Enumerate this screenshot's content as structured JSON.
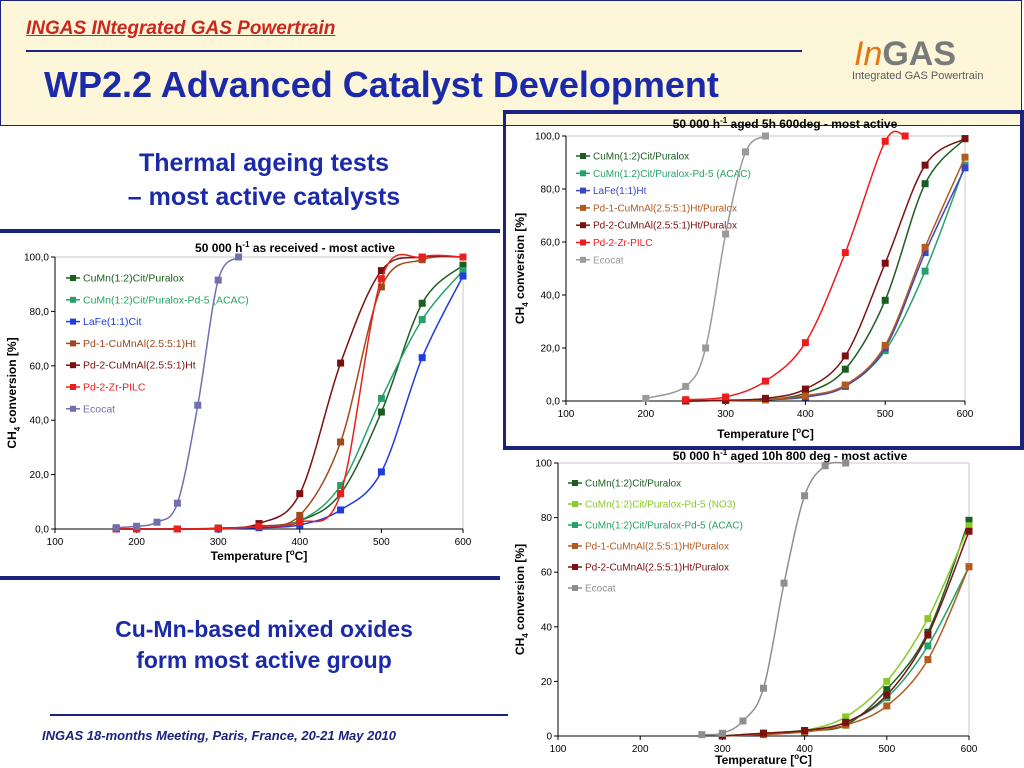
{
  "header": {
    "project_title": "INGAS INtegrated GAS Powertrain",
    "page_title": "WP2.2 Advanced Catalyst Development",
    "logo_in": "In",
    "logo_gas": "GAS",
    "logo_subtitle": "Integrated GAS Powertrain"
  },
  "section_title": [
    "Thermal ageing tests",
    "– most active catalysts"
  ],
  "conclusion": [
    "Cu-Mn-based mixed oxides",
    "form most active group"
  ],
  "footer": "INGAS 18-months Meeting, Paris, France, 20-21 May 2010",
  "chart_data": [
    {
      "type": "line",
      "title_main": "50 000 h",
      "title_sup": "-1",
      "title_rest": " as received - most active",
      "xlabel": "Temperature [",
      "xlabel_unit": "o",
      "xlabel_end": "C]",
      "ylabel": "CH",
      "ylabel_sub": "4",
      "ylabel_end": " conversion [%]",
      "xlim": [
        100,
        600
      ],
      "ylim": [
        0,
        100
      ],
      "xticks": [
        100,
        200,
        300,
        400,
        500,
        600
      ],
      "yticks": [
        "0,0",
        "20,0",
        "40,0",
        "60,0",
        "80,0",
        "100,0"
      ],
      "legend_position": "top-left",
      "series": [
        {
          "name": "CuMn(1:2)Cit/Puralox",
          "color": "#1b5e20",
          "x": [
            175,
            200,
            250,
            300,
            350,
            400,
            450,
            500,
            550,
            600
          ],
          "y": [
            0,
            0,
            0,
            0.2,
            1,
            3,
            13,
            43,
            83,
            97
          ]
        },
        {
          "name": "CuMn(1:2)Cit/Puralox-Pd-5 (ACAC)",
          "color": "#26a269",
          "x": [
            175,
            200,
            250,
            300,
            350,
            400,
            450,
            500,
            550,
            600
          ],
          "y": [
            0,
            0,
            0,
            0.2,
            1,
            3,
            16,
            48,
            77,
            95
          ]
        },
        {
          "name": "LaFe(1:1)Cit",
          "color": "#1f3ce0",
          "x": [
            175,
            200,
            250,
            300,
            350,
            400,
            450,
            500,
            550,
            600
          ],
          "y": [
            0,
            0,
            0,
            0,
            0.5,
            1.5,
            7,
            21,
            63,
            93
          ]
        },
        {
          "name": "Pd-1-CuMnAl(2.5:5:1)Ht",
          "color": "#a0491a",
          "x": [
            175,
            200,
            250,
            300,
            350,
            400,
            450,
            500,
            550,
            600
          ],
          "y": [
            0,
            0,
            0,
            0.3,
            1,
            5,
            32,
            89,
            99,
            100
          ]
        },
        {
          "name": "Pd-2-CuMnAl(2.5:5:1)Ht",
          "color": "#7b1010",
          "x": [
            175,
            200,
            250,
            300,
            350,
            400,
            450,
            500,
            550,
            600
          ],
          "y": [
            0,
            0,
            0,
            0.3,
            2,
            13,
            61,
            95,
            100,
            100
          ]
        },
        {
          "name": "Pd-2-Zr-PILC",
          "color": "#e8201e",
          "x": [
            175,
            200,
            250,
            300,
            350,
            400,
            450,
            500,
            550,
            600
          ],
          "y": [
            0,
            0,
            0,
            0.2,
            1,
            2.5,
            13,
            92,
            100,
            100
          ]
        },
        {
          "name": "Ecocat",
          "color": "#7070b0",
          "x": [
            175,
            200,
            225,
            250,
            275,
            300,
            325
          ],
          "y": [
            0.5,
            1,
            2.5,
            9.5,
            45.5,
            91.5,
            100
          ]
        }
      ]
    },
    {
      "type": "line",
      "title_main": "50 000 h",
      "title_sup": "-1",
      "title_rest": " aged 5h 600deg - most active",
      "xlabel": "Temperature [",
      "xlabel_unit": "o",
      "xlabel_end": "C]",
      "ylabel": "CH",
      "ylabel_sub": "4",
      "ylabel_end": " conversion [%]",
      "xlim": [
        100,
        600
      ],
      "ylim": [
        0,
        100
      ],
      "xticks": [
        100,
        200,
        300,
        400,
        500,
        600
      ],
      "yticks": [
        "0,0",
        "20,0",
        "40,0",
        "60,0",
        "80,0",
        "100,0"
      ],
      "legend_position": "top-left",
      "series": [
        {
          "name": "CuMn(1:2)Cit/Puralox",
          "color": "#1b5e20",
          "x": [
            250,
            300,
            350,
            400,
            450,
            500,
            550,
            600
          ],
          "y": [
            0,
            0.2,
            0.5,
            3,
            12,
            38,
            82,
            99
          ]
        },
        {
          "name": "CuMn(1:2)Cit/Puralox-Pd-5 (ACAC)",
          "color": "#26a269",
          "x": [
            250,
            300,
            350,
            400,
            450,
            500,
            550,
            600
          ],
          "y": [
            0,
            0.2,
            0.5,
            1.5,
            6,
            19,
            49,
            89
          ]
        },
        {
          "name": "LaFe(1:1)Ht",
          "color": "#3a45c8",
          "x": [
            250,
            300,
            350,
            400,
            450,
            500,
            550,
            600
          ],
          "y": [
            0,
            0.2,
            0.5,
            1.5,
            5.5,
            20,
            56,
            88
          ]
        },
        {
          "name": "Pd-1-CuMnAl(2.5:5:1)Ht/Puralox",
          "color": "#b35a1f",
          "x": [
            250,
            300,
            350,
            400,
            450,
            500,
            550,
            600
          ],
          "y": [
            0,
            0.2,
            0.5,
            2,
            6,
            21,
            58,
            92
          ]
        },
        {
          "name": "Pd-2-CuMnAl(2.5:5:1)Ht/Puralox",
          "color": "#7b1010",
          "x": [
            250,
            300,
            350,
            400,
            450,
            500,
            550,
            600
          ],
          "y": [
            0,
            0.3,
            1,
            4.5,
            17,
            52,
            89,
            99
          ]
        },
        {
          "name": "Pd-2-Zr-PILC",
          "color": "#ee1c1c",
          "x": [
            250,
            300,
            350,
            400,
            450,
            500,
            525
          ],
          "y": [
            0.5,
            1.5,
            7.5,
            22,
            56,
            98,
            100
          ]
        },
        {
          "name": "Ecocat",
          "color": "#9a9a9a",
          "x": [
            200,
            250,
            275,
            300,
            325,
            350
          ],
          "y": [
            1,
            5.5,
            20,
            63,
            94,
            100
          ]
        }
      ]
    },
    {
      "type": "line",
      "title_main": "50 000 h",
      "title_sup": "-1",
      "title_rest": " aged 10h 800 deg - most active",
      "xlabel": "Temperature [",
      "xlabel_unit": "o",
      "xlabel_end": "C]",
      "ylabel": "CH",
      "ylabel_sub": "4",
      "ylabel_end": " conversion [%]",
      "xlim": [
        100,
        600
      ],
      "ylim": [
        0,
        100
      ],
      "xticks": [
        100,
        200,
        300,
        400,
        500,
        600
      ],
      "yticks": [
        "0",
        "20",
        "40",
        "60",
        "80",
        "100"
      ],
      "legend_position": "top-left",
      "series": [
        {
          "name": "CuMn(1:2)Cit/Puralox",
          "color": "#1b5e20",
          "x": [
            300,
            350,
            400,
            450,
            500,
            550,
            600
          ],
          "y": [
            0,
            1,
            2,
            4,
            17,
            38,
            79
          ]
        },
        {
          "name": "CuMn(1:2)Cit/Puralox-Pd-5 (NO3)",
          "color": "#8bc82a",
          "x": [
            300,
            350,
            400,
            450,
            500,
            550,
            600
          ],
          "y": [
            0,
            1,
            2,
            7,
            20,
            43,
            77
          ]
        },
        {
          "name": "CuMn(1:2)Cit/Puralox-Pd-5 (ACAC)",
          "color": "#26a269",
          "x": [
            300,
            350,
            400,
            450,
            500,
            550,
            600
          ],
          "y": [
            0,
            1,
            2,
            5,
            14,
            33,
            62
          ]
        },
        {
          "name": "Pd-1-CuMnAl(2.5:5:1)Ht/Puralox",
          "color": "#b35a1f",
          "x": [
            300,
            350,
            400,
            450,
            500,
            550,
            600
          ],
          "y": [
            0,
            0.5,
            1.5,
            4,
            11,
            28,
            62
          ]
        },
        {
          "name": "Pd-2-CuMnAl(2.5:5:1)Ht/Puralox",
          "color": "#7b1010",
          "x": [
            300,
            350,
            400,
            450,
            500,
            550,
            600
          ],
          "y": [
            0,
            1,
            2,
            5,
            15,
            37,
            75
          ]
        },
        {
          "name": "Ecocat",
          "color": "#8e8e8e",
          "x": [
            275,
            300,
            325,
            350,
            375,
            400,
            425,
            450
          ],
          "y": [
            0.5,
            1,
            5.5,
            17.5,
            56,
            88,
            99,
            100
          ]
        }
      ]
    }
  ]
}
